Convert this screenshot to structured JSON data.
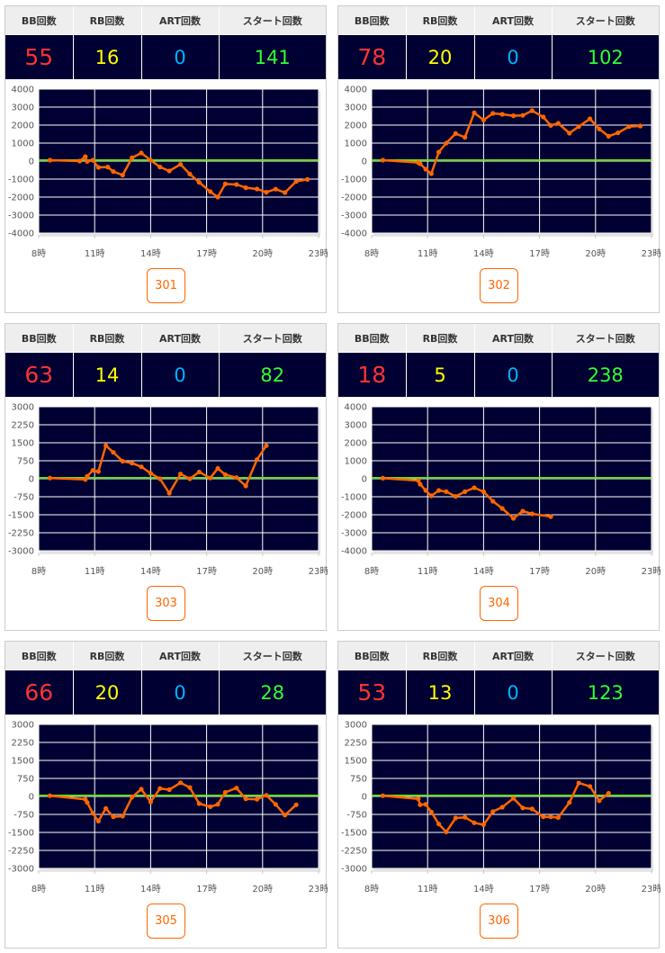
{
  "headers": {
    "bb": "BB回数",
    "rb": "RB回数",
    "art": "ART回数",
    "start": "スタート回数"
  },
  "colors": {
    "bb": "#ff3333",
    "rb": "#ffff00",
    "art": "#00b4ff",
    "start": "#33ff33",
    "line": "#ff6600",
    "zero": "#66dd22",
    "plot_bg": "#000033"
  },
  "machines": [
    {
      "number": "301",
      "bb": "55",
      "rb": "16",
      "art": "0",
      "start": "141"
    },
    {
      "number": "302",
      "bb": "78",
      "rb": "20",
      "art": "0",
      "start": "102"
    },
    {
      "number": "303",
      "bb": "63",
      "rb": "14",
      "art": "0",
      "start": "82"
    },
    {
      "number": "304",
      "bb": "18",
      "rb": "5",
      "art": "0",
      "start": "238"
    },
    {
      "number": "305",
      "bb": "66",
      "rb": "20",
      "art": "0",
      "start": "28"
    },
    {
      "number": "306",
      "bb": "53",
      "rb": "13",
      "art": "0",
      "start": "123"
    }
  ],
  "chart_data": [
    {
      "type": "line",
      "title": "301",
      "x_ticks": [
        "8時",
        "11時",
        "14時",
        "17時",
        "20時",
        "23時"
      ],
      "xlim": [
        8,
        23
      ],
      "ylim": [
        -4000,
        4000
      ],
      "y_ticks": [
        4000,
        3000,
        2000,
        1000,
        0,
        -1000,
        -2000,
        -3000,
        -4000
      ],
      "x": [
        8.6,
        10.2,
        10.5,
        10.6,
        10.9,
        11.2,
        11.7,
        12.0,
        12.5,
        13.0,
        13.5,
        14.0,
        14.5,
        15.0,
        15.6,
        16.1,
        16.6,
        17.2,
        17.6,
        18.0,
        18.6,
        19.1,
        19.7,
        20.2,
        20.7,
        21.2,
        21.8,
        22.4
      ],
      "y": [
        50,
        0,
        250,
        -20,
        50,
        -350,
        -330,
        -580,
        -780,
        180,
        450,
        50,
        -330,
        -550,
        -180,
        -720,
        -1180,
        -1700,
        -2000,
        -1270,
        -1300,
        -1480,
        -1550,
        -1730,
        -1560,
        -1750,
        -1130,
        -1020
      ]
    },
    {
      "type": "line",
      "title": "302",
      "x_ticks": [
        "8時",
        "11時",
        "14時",
        "17時",
        "20時",
        "23時"
      ],
      "xlim": [
        8,
        23
      ],
      "ylim": [
        -4000,
        4000
      ],
      "y_ticks": [
        4000,
        3000,
        2000,
        1000,
        0,
        -1000,
        -2000,
        -3000,
        -4000
      ],
      "x": [
        8.6,
        10.5,
        10.6,
        10.9,
        11.2,
        11.6,
        12.0,
        12.5,
        13.0,
        13.5,
        14.0,
        14.5,
        15.0,
        15.6,
        16.1,
        16.6,
        17.2,
        17.6,
        18.0,
        18.6,
        19.1,
        19.7,
        20.2,
        20.7,
        21.2,
        21.8,
        22.4
      ],
      "y": [
        50,
        -80,
        -150,
        -450,
        -700,
        500,
        1000,
        1530,
        1320,
        2680,
        2280,
        2650,
        2600,
        2520,
        2540,
        2800,
        2450,
        1980,
        2100,
        1550,
        1920,
        2350,
        1780,
        1380,
        1570,
        1920,
        1950
      ]
    },
    {
      "type": "line",
      "title": "303",
      "x_ticks": [
        "8時",
        "11時",
        "14時",
        "17時",
        "20時",
        "23時"
      ],
      "xlim": [
        8,
        23
      ],
      "ylim": [
        -3000,
        3000
      ],
      "y_ticks": [
        3000,
        2250,
        1500,
        750,
        0,
        -750,
        -1500,
        -2250,
        -3000
      ],
      "x": [
        8.6,
        10.5,
        10.6,
        10.9,
        11.2,
        11.6,
        12.0,
        12.5,
        13.0,
        13.5,
        14.0,
        14.5,
        15.0,
        15.6,
        16.1,
        16.6,
        17.2,
        17.6,
        18.0,
        18.6,
        19.1,
        19.7,
        20.2
      ],
      "y": [
        30,
        -30,
        100,
        350,
        300,
        1380,
        1100,
        730,
        650,
        500,
        230,
        0,
        -600,
        200,
        0,
        280,
        30,
        430,
        170,
        50,
        -300,
        800,
        1380
      ]
    },
    {
      "type": "line",
      "title": "304",
      "x_ticks": [
        "8時",
        "11時",
        "14時",
        "17時",
        "20時",
        "23時"
      ],
      "xlim": [
        8,
        23
      ],
      "ylim": [
        -4000,
        4000
      ],
      "y_ticks": [
        4000,
        3000,
        2000,
        1000,
        0,
        -1000,
        -2000,
        -3000,
        -4000
      ],
      "x": [
        8.6,
        10.5,
        10.6,
        10.9,
        11.2,
        11.6,
        12.0,
        12.5,
        13.0,
        13.5,
        14.0,
        14.5,
        15.0,
        15.6,
        16.1,
        16.6,
        17.6
      ],
      "y": [
        30,
        -100,
        -300,
        -650,
        -950,
        -650,
        -720,
        -980,
        -720,
        -500,
        -720,
        -1250,
        -1650,
        -2200,
        -1800,
        -1950,
        -2100
      ]
    },
    {
      "type": "line",
      "title": "305",
      "x_ticks": [
        "8時",
        "11時",
        "14時",
        "17時",
        "20時",
        "23時"
      ],
      "xlim": [
        8,
        23
      ],
      "ylim": [
        -3000,
        3000
      ],
      "y_ticks": [
        3000,
        2250,
        1500,
        750,
        0,
        -750,
        -1500,
        -2250,
        -3000
      ],
      "x": [
        8.6,
        10.5,
        10.6,
        10.9,
        11.2,
        11.6,
        12.0,
        12.5,
        13.0,
        13.5,
        14.0,
        14.5,
        15.0,
        15.6,
        16.1,
        16.6,
        17.2,
        17.6,
        18.0,
        18.6,
        19.1,
        19.7,
        20.2,
        20.7,
        21.2,
        21.8
      ],
      "y": [
        30,
        -120,
        -250,
        -700,
        -1030,
        -500,
        -850,
        -820,
        -30,
        300,
        -230,
        330,
        280,
        570,
        370,
        -300,
        -430,
        -330,
        170,
        350,
        -100,
        -120,
        50,
        -330,
        -780,
        -350
      ]
    },
    {
      "type": "line",
      "title": "306",
      "x_ticks": [
        "8時",
        "11時",
        "14時",
        "17時",
        "20時",
        "23時"
      ],
      "xlim": [
        8,
        23
      ],
      "ylim": [
        -3000,
        3000
      ],
      "y_ticks": [
        3000,
        2250,
        1500,
        750,
        0,
        -750,
        -1500,
        -2250,
        -3000
      ],
      "x": [
        8.6,
        10.5,
        10.6,
        10.9,
        11.2,
        11.6,
        12.0,
        12.5,
        13.0,
        13.5,
        14.0,
        14.5,
        15.0,
        15.6,
        16.1,
        16.6,
        17.2,
        17.6,
        18.0,
        18.6,
        19.1,
        19.7,
        20.2,
        20.7
      ],
      "y": [
        30,
        -100,
        -350,
        -330,
        -650,
        -1150,
        -1480,
        -900,
        -870,
        -1100,
        -1180,
        -630,
        -450,
        -80,
        -480,
        -520,
        -850,
        -850,
        -880,
        -250,
        560,
        420,
        -180,
        130
      ]
    }
  ]
}
